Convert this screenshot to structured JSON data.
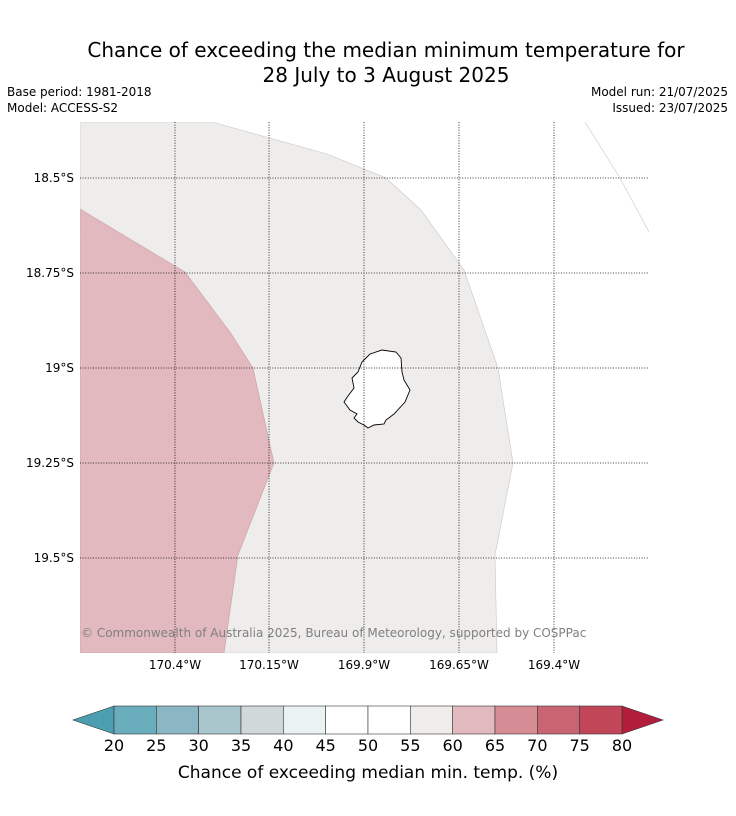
{
  "title_line1": "Chance of exceeding the median minimum temperature for",
  "title_line2": "28 July to 3 August 2025",
  "base_period": "Base period: 1981-2018",
  "model": "Model: ACCESS-S2",
  "model_run": "Model run: 21/07/2025",
  "issued": "Issued: 23/07/2025",
  "copyright": "© Commonwealth of Australia 2025, Bureau of Meteorology, supported by COSPPac",
  "lat_labels": [
    "18.5°S",
    "18.75°S",
    "19°S",
    "19.25°S",
    "19.5°S"
  ],
  "lon_labels": [
    "170.4°W",
    "170.15°W",
    "169.9°W",
    "169.65°W",
    "169.4°W"
  ],
  "map_regions": {
    "region_60_65": "60–65%",
    "region_55_60": "55–60%",
    "island": "island outline"
  },
  "colorbar": {
    "label": "Chance of exceeding median min. temp. (%)",
    "ticks": [
      "20",
      "25",
      "30",
      "35",
      "40",
      "45",
      "50",
      "55",
      "60",
      "65",
      "70",
      "75",
      "80"
    ],
    "colors": [
      "#6aaebe",
      "#8ab7c3",
      "#a8c6cb",
      "#d0d8da",
      "#ebf2f3",
      "#ffffff",
      "#ffffff",
      "#eeedec",
      "#e1b9be",
      "#d68c95",
      "#c96573",
      "#c14657"
    ],
    "under_color": "#4c9fb0",
    "over_color": "#b21e3a"
  },
  "colors": {
    "region_60_65": "#e1b9be",
    "region_55_60": "#eeedec",
    "ocean_white": "#ffffff"
  }
}
